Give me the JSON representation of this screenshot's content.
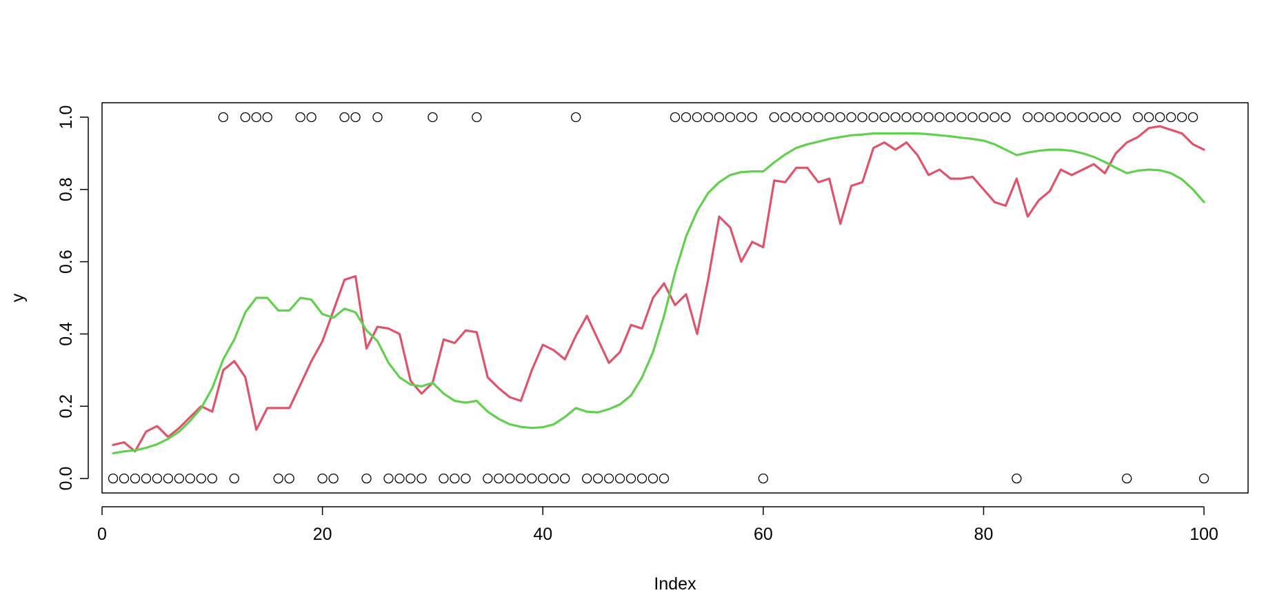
{
  "chart_data": {
    "type": "scatter",
    "xlabel": "Index",
    "ylabel": "y",
    "xlim": [
      0,
      104
    ],
    "ylim": [
      -0.04,
      1.04
    ],
    "x_ticks": [
      0,
      20,
      40,
      60,
      80,
      100
    ],
    "x_tick_labels": [
      "0",
      "20",
      "40",
      "60",
      "80",
      "100"
    ],
    "y_ticks": [
      0.0,
      0.2,
      0.4,
      0.6,
      0.8,
      1.0
    ],
    "y_tick_labels": [
      "0.0",
      "0.2",
      "0.4",
      "0.6",
      "0.8",
      "1.0"
    ],
    "grid": false,
    "legend": "none",
    "points": {
      "x": [
        1,
        2,
        3,
        4,
        5,
        6,
        7,
        8,
        9,
        10,
        11,
        12,
        13,
        14,
        15,
        16,
        17,
        18,
        19,
        20,
        21,
        22,
        23,
        24,
        25,
        26,
        27,
        28,
        29,
        30,
        31,
        32,
        33,
        34,
        35,
        36,
        37,
        38,
        39,
        40,
        41,
        42,
        43,
        44,
        45,
        46,
        47,
        48,
        49,
        50,
        51,
        52,
        53,
        54,
        55,
        56,
        57,
        58,
        59,
        60,
        61,
        62,
        63,
        64,
        65,
        66,
        67,
        68,
        69,
        70,
        71,
        72,
        73,
        74,
        75,
        76,
        77,
        78,
        79,
        80,
        81,
        82,
        83,
        84,
        85,
        86,
        87,
        88,
        89,
        90,
        91,
        92,
        93,
        94,
        95,
        96,
        97,
        98,
        99,
        100
      ],
      "y": [
        0,
        0,
        0,
        0,
        0,
        0,
        0,
        0,
        0,
        0,
        1,
        0,
        1,
        1,
        1,
        0,
        0,
        1,
        1,
        0,
        0,
        1,
        1,
        0,
        1,
        0,
        0,
        0,
        0,
        1,
        0,
        0,
        0,
        1,
        0,
        0,
        0,
        0,
        0,
        0,
        0,
        0,
        1,
        0,
        0,
        0,
        0,
        0,
        0,
        0,
        0,
        1,
        1,
        1,
        1,
        1,
        1,
        1,
        1,
        0,
        1,
        1,
        1,
        1,
        1,
        1,
        1,
        1,
        1,
        1,
        1,
        1,
        1,
        1,
        1,
        1,
        1,
        1,
        1,
        1,
        1,
        1,
        0,
        1,
        1,
        1,
        1,
        1,
        1,
        1,
        1,
        1,
        0,
        1,
        1,
        1,
        1,
        1,
        1,
        0
      ],
      "color": "#000000",
      "marker": "open-circle"
    },
    "series": [
      {
        "color": "#DF536B",
        "x": [
          1,
          2,
          3,
          4,
          5,
          6,
          7,
          8,
          9,
          10,
          11,
          12,
          13,
          14,
          15,
          16,
          17,
          18,
          19,
          20,
          21,
          22,
          23,
          24,
          25,
          26,
          27,
          28,
          29,
          30,
          31,
          32,
          33,
          34,
          35,
          36,
          37,
          38,
          39,
          40,
          41,
          42,
          43,
          44,
          45,
          46,
          47,
          48,
          49,
          50,
          51,
          52,
          53,
          54,
          55,
          56,
          57,
          58,
          59,
          60,
          61,
          62,
          63,
          64,
          65,
          66,
          67,
          68,
          69,
          70,
          71,
          72,
          73,
          74,
          75,
          76,
          77,
          78,
          79,
          80,
          81,
          82,
          83,
          84,
          85,
          86,
          87,
          88,
          89,
          90,
          91,
          92,
          93,
          94,
          95,
          96,
          97,
          98,
          99,
          100
        ],
        "values": [
          0.093,
          0.1,
          0.075,
          0.13,
          0.145,
          0.115,
          0.14,
          0.17,
          0.2,
          0.185,
          0.3,
          0.325,
          0.28,
          0.135,
          0.195,
          0.195,
          0.195,
          0.26,
          0.325,
          0.38,
          0.465,
          0.55,
          0.56,
          0.36,
          0.42,
          0.415,
          0.4,
          0.27,
          0.235,
          0.265,
          0.385,
          0.375,
          0.41,
          0.405,
          0.28,
          0.25,
          0.225,
          0.215,
          0.3,
          0.37,
          0.355,
          0.33,
          0.395,
          0.45,
          0.385,
          0.32,
          0.35,
          0.425,
          0.415,
          0.5,
          0.54,
          0.48,
          0.51,
          0.4,
          0.55,
          0.725,
          0.695,
          0.6,
          0.655,
          0.64,
          0.825,
          0.82,
          0.86,
          0.86,
          0.82,
          0.83,
          0.705,
          0.81,
          0.82,
          0.915,
          0.93,
          0.91,
          0.93,
          0.895,
          0.84,
          0.855,
          0.83,
          0.83,
          0.835,
          0.8,
          0.765,
          0.755,
          0.83,
          0.725,
          0.77,
          0.795,
          0.855,
          0.84,
          0.855,
          0.87,
          0.845,
          0.9,
          0.93,
          0.945,
          0.97,
          0.975,
          0.965,
          0.955,
          0.925,
          0.91
        ]
      },
      {
        "color": "#61D04F",
        "x": [
          1,
          2,
          3,
          4,
          5,
          6,
          7,
          8,
          9,
          10,
          11,
          12,
          13,
          14,
          15,
          16,
          17,
          18,
          19,
          20,
          21,
          22,
          23,
          24,
          25,
          26,
          27,
          28,
          29,
          30,
          31,
          32,
          33,
          34,
          35,
          36,
          37,
          38,
          39,
          40,
          41,
          42,
          43,
          44,
          45,
          46,
          47,
          48,
          49,
          50,
          51,
          52,
          53,
          54,
          55,
          56,
          57,
          58,
          59,
          60,
          61,
          62,
          63,
          64,
          65,
          66,
          67,
          68,
          69,
          70,
          71,
          72,
          73,
          74,
          75,
          76,
          77,
          78,
          79,
          80,
          81,
          82,
          83,
          84,
          85,
          86,
          87,
          88,
          89,
          90,
          91,
          92,
          93,
          94,
          95,
          96,
          97,
          98,
          99,
          100
        ],
        "values": [
          0.07,
          0.075,
          0.078,
          0.085,
          0.095,
          0.11,
          0.13,
          0.16,
          0.195,
          0.25,
          0.33,
          0.385,
          0.46,
          0.5,
          0.5,
          0.465,
          0.465,
          0.5,
          0.495,
          0.455,
          0.445,
          0.47,
          0.46,
          0.41,
          0.38,
          0.32,
          0.28,
          0.26,
          0.255,
          0.265,
          0.235,
          0.215,
          0.21,
          0.215,
          0.185,
          0.165,
          0.15,
          0.143,
          0.14,
          0.142,
          0.15,
          0.17,
          0.195,
          0.185,
          0.183,
          0.192,
          0.205,
          0.23,
          0.28,
          0.35,
          0.45,
          0.57,
          0.67,
          0.74,
          0.79,
          0.82,
          0.84,
          0.848,
          0.85,
          0.85,
          0.875,
          0.897,
          0.915,
          0.925,
          0.932,
          0.94,
          0.945,
          0.95,
          0.952,
          0.955,
          0.955,
          0.955,
          0.955,
          0.955,
          0.953,
          0.95,
          0.947,
          0.943,
          0.94,
          0.935,
          0.925,
          0.91,
          0.895,
          0.902,
          0.907,
          0.91,
          0.91,
          0.907,
          0.9,
          0.89,
          0.876,
          0.86,
          0.845,
          0.852,
          0.855,
          0.853,
          0.845,
          0.828,
          0.8,
          0.765
        ]
      }
    ]
  }
}
